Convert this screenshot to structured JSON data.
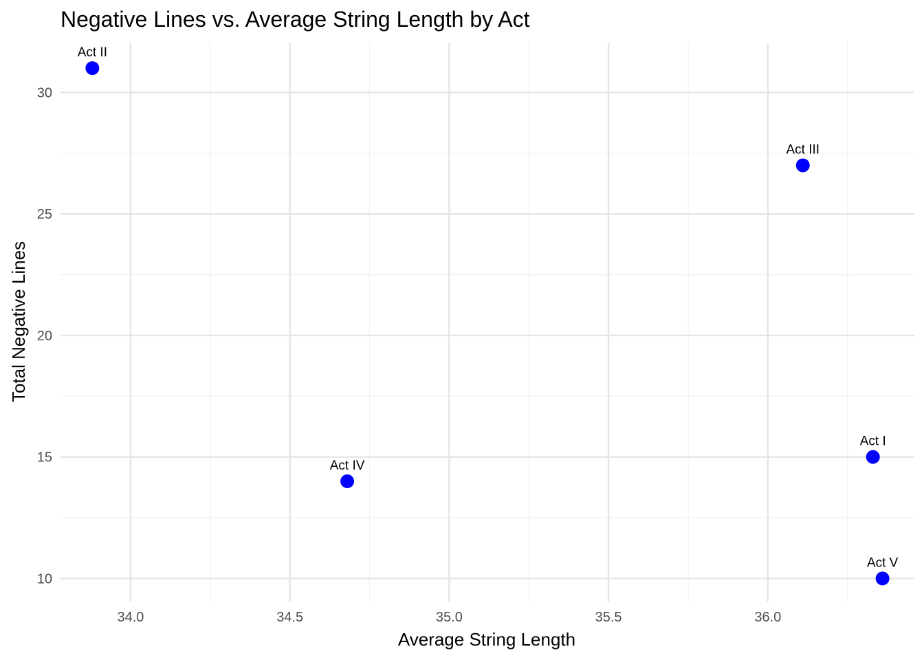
{
  "chart_data": {
    "type": "scatter",
    "title": "Negative Lines vs. Average String Length by Act",
    "xlabel": "Average String Length",
    "ylabel": "Total Negative Lines",
    "xlim": [
      33.78,
      36.46
    ],
    "ylim": [
      9.05,
      32.05
    ],
    "x_ticks": [
      34.0,
      34.5,
      35.0,
      35.5,
      36.0
    ],
    "x_tick_labels": [
      "34.0",
      "34.5",
      "35.0",
      "35.5",
      "36.0"
    ],
    "y_ticks": [
      10,
      15,
      20,
      25,
      30
    ],
    "y_tick_labels": [
      "10",
      "15",
      "20",
      "25",
      "30"
    ],
    "grid": true,
    "point_color": "#0000ff",
    "points": [
      {
        "label": "Act I",
        "x": 36.33,
        "y": 15
      },
      {
        "label": "Act II",
        "x": 33.88,
        "y": 31
      },
      {
        "label": "Act III",
        "x": 36.11,
        "y": 27
      },
      {
        "label": "Act IV",
        "x": 34.68,
        "y": 14
      },
      {
        "label": "Act V",
        "x": 36.36,
        "y": 10
      }
    ]
  }
}
